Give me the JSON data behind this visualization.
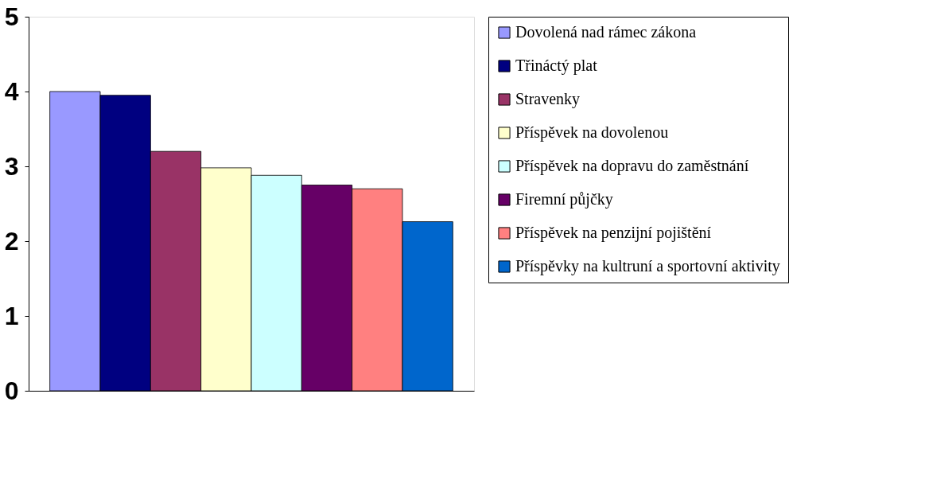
{
  "chart_data": {
    "type": "bar",
    "categories": [
      null
    ],
    "series": [
      {
        "name": "Dovolená nad rámec zákona",
        "color": "#9999ff",
        "values": [
          4.0
        ]
      },
      {
        "name": "Třináctý plat",
        "color": "#000080",
        "values": [
          3.95
        ]
      },
      {
        "name": "Stravenky",
        "color": "#993366",
        "values": [
          3.2
        ]
      },
      {
        "name": "Příspěvek na dovolenou",
        "color": "#ffffcc",
        "values": [
          2.98
        ]
      },
      {
        "name": "Příspěvek na dopravu do zaměstnání",
        "color": "#ccffff",
        "values": [
          2.88
        ]
      },
      {
        "name": "Firemní půjčky",
        "color": "#660066",
        "values": [
          2.75
        ]
      },
      {
        "name": "Příspěvek na penzijní pojištění",
        "color": "#ff8080",
        "values": [
          2.7
        ]
      },
      {
        "name": "Příspěvky na kultruní a sportovní aktivity",
        "color": "#0066cc",
        "values": [
          2.26
        ]
      }
    ],
    "ylim": [
      0,
      5
    ],
    "yticks": [
      0,
      1,
      2,
      3,
      4,
      5
    ],
    "grid": false,
    "legend": "right",
    "tick_labels": "y"
  }
}
